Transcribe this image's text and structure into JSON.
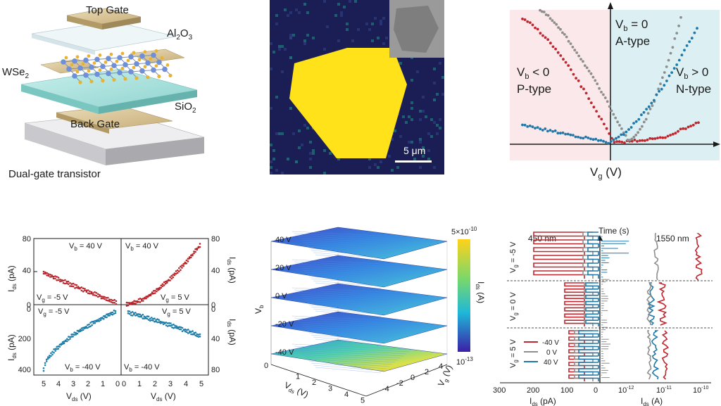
{
  "device": {
    "labels": {
      "top_gate": "Top Gate",
      "al2o3": "Al",
      "al2o3_sub1": "2",
      "al2o3_o": "O",
      "al2o3_sub2": "3",
      "wse2": "WSe",
      "wse2_sub": "2",
      "sio2": "SiO",
      "sio2_sub": "2",
      "back_gate": "Back Gate",
      "caption": "Dual-gate transistor"
    },
    "colors": {
      "gate": "#d8c39a",
      "oxide": "#bfe7e4",
      "glass": "#e8f1f3",
      "substrate": "#cfcfd2",
      "w_atom": "#6f8fd8",
      "se_atom": "#e8b333"
    }
  },
  "micrograph": {
    "scale_bar": "5 μm",
    "colors": {
      "background": "#1b1d55",
      "flake": "#ffe21a",
      "noise": "#1f7a7a"
    }
  },
  "transfer_curves": {
    "xlabel_main": "V",
    "xlabel_sub": "g",
    "xlabel_unit": " (V)",
    "regions": [
      {
        "line1_main": "V",
        "line1_sub": "b",
        "line1_rest": " < 0",
        "line2": "P-type"
      },
      {
        "line1_main": "V",
        "line1_sub": "b",
        "line1_rest": " = 0",
        "line2": "A-type"
      },
      {
        "line1_main": "V",
        "line1_sub": "b",
        "line1_rest": " > 0",
        "line2": "N-type"
      }
    ],
    "colors": {
      "p_bg": "#fbe8ea",
      "n_bg": "#dcf0f3",
      "red": "#c0262d",
      "grey": "#8e8e8e",
      "blue": "#1f78a8"
    }
  },
  "iv_curves": {
    "quadrants": [
      {
        "vb": "V",
        "vb_sub": "b",
        "vb_rest": " = 40 V",
        "vg": "V",
        "vg_sub": "g",
        "vg_rest": " = -5 V"
      },
      {
        "vb": "V",
        "vb_sub": "b",
        "vb_rest": " = 40 V",
        "vg": "V",
        "vg_sub": "g",
        "vg_rest": " = 5 V"
      },
      {
        "vb": "V",
        "vb_sub": "b",
        "vb_rest": " = -40 V",
        "vg": "V",
        "vg_sub": "g",
        "vg_rest": " = -5 V"
      },
      {
        "vb": "V",
        "vb_sub": "b",
        "vb_rest": " = -40 V",
        "vg": "V",
        "vg_sub": "g",
        "vg_rest": " = 5 V"
      }
    ],
    "ylabel_left": "I",
    "ylabel_left_sub": "ds",
    "ylabel_left_unit": " (pA)",
    "ylabel_right": "I",
    "ylabel_right_sub": "ds",
    "ylabel_right_unit": " (pA)",
    "xlabel": "V",
    "xlabel_sub": "ds",
    "xlabel_unit": " (V)",
    "left_ticks_top": [
      "80",
      "40",
      "0"
    ],
    "left_ticks_bottom": [
      "0",
      "200",
      "400"
    ],
    "right_ticks_top": [
      "80",
      "40",
      "0"
    ],
    "right_ticks_bottom": [
      "0",
      "40",
      "80"
    ],
    "x_ticks_left": [
      "5",
      "4",
      "3",
      "2",
      "1",
      "0"
    ],
    "x_ticks_right": [
      "0",
      "1",
      "2",
      "3",
      "4",
      "5"
    ],
    "colors": {
      "red": "#b8242b",
      "blue": "#1f7ea8"
    }
  },
  "stack3d": {
    "vb_ticks": [
      "40 V",
      "20 V",
      "0 V",
      "-20 V",
      "-40 V"
    ],
    "vb_axis": "V",
    "vb_axis_sub": "b",
    "vds_axis": "V",
    "vds_axis_sub": "ds",
    "vds_axis_unit": " (V)",
    "vg_axis": "V",
    "vg_axis_sub": "g",
    "vg_axis_unit": " (V)",
    "vds_ticks": [
      "0",
      "1",
      "2",
      "3",
      "4",
      "5"
    ],
    "vg_ticks": [
      "4",
      "2",
      "0",
      "-2",
      "-4"
    ],
    "colorbar_max": "5×10",
    "colorbar_max_exp": "-10",
    "colorbar_min": "10",
    "colorbar_min_exp": "-13",
    "colorbar_label": "I",
    "colorbar_label_sub": "ds",
    "colorbar_label_unit": " (A)",
    "colors": [
      "#3b1fa8",
      "#2d5fe0",
      "#1fa8d8",
      "#2ad3a0",
      "#c8e030",
      "#ffd21a"
    ]
  },
  "timetrace": {
    "header_time": "Time (s)",
    "header_450": "450 nm",
    "header_1550": "1550 nm",
    "rows": [
      {
        "vg": "V",
        "vg_sub": "g",
        "vg_rest": " = -5 V"
      },
      {
        "vg": "V",
        "vg_sub": "g",
        "vg_rest": " = 0 V"
      },
      {
        "vg": "V",
        "vg_sub": "g",
        "vg_rest": " = 5 V"
      }
    ],
    "legend": [
      {
        "label": "-40 V",
        "color": "#c0262d"
      },
      {
        "label": "0 V",
        "color": "#8e8e8e"
      },
      {
        "label": "40 V",
        "color": "#1f78a8"
      }
    ],
    "x_left_ticks": [
      "300",
      "200",
      "100",
      "0"
    ],
    "x_left_label": "I",
    "x_left_label_sub": "ds",
    "x_left_label_unit": " (pA)",
    "x_right_ticks": [
      "10",
      "10",
      "10"
    ],
    "x_right_exps": [
      "-12",
      "-11",
      "-10"
    ],
    "x_right_label": "I",
    "x_right_label_sub": "ds",
    "x_right_label_unit": " (A)"
  }
}
